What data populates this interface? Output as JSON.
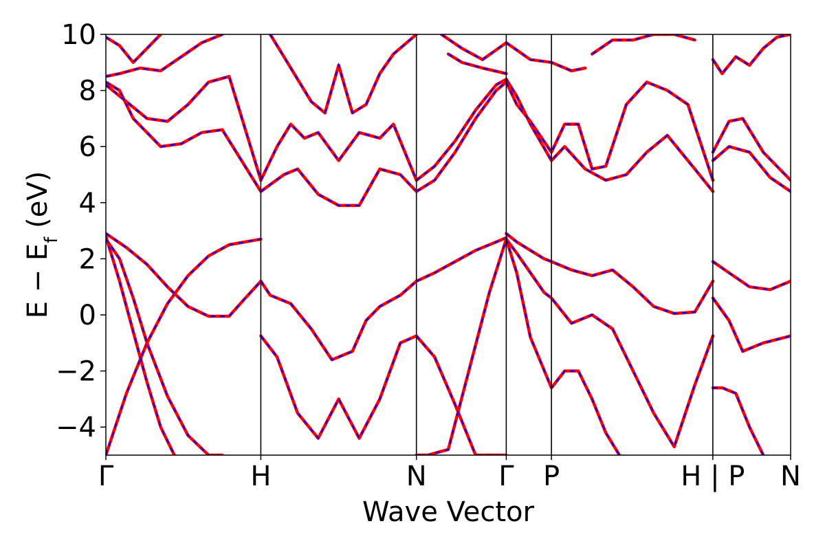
{
  "chart_data": {
    "type": "line",
    "xlabel": "Wave Vector",
    "ylabel": {
      "main": "E − E",
      "sub": "f",
      "unit": " (eV)"
    },
    "ylim": [
      -5,
      10
    ],
    "yticks": [
      {
        "value": -4,
        "label": "−4"
      },
      {
        "value": -2,
        "label": "−2"
      },
      {
        "value": 0,
        "label": "0"
      },
      {
        "value": 2,
        "label": "2"
      },
      {
        "value": 4,
        "label": "4"
      },
      {
        "value": 6,
        "label": "6"
      },
      {
        "value": 8,
        "label": "8"
      },
      {
        "value": 10,
        "label": "10"
      }
    ],
    "xlim": [
      0,
      1
    ],
    "kpoints": [
      {
        "label": "Γ",
        "x": 0.0
      },
      {
        "label": "H",
        "x": 0.2263
      },
      {
        "label": "N",
        "x": 0.4535
      },
      {
        "label": "Γ",
        "x": 0.5847
      },
      {
        "label": "P",
        "x": 0.6507
      },
      {
        "label": "H | P",
        "x": 0.8864
      },
      {
        "label": "N",
        "x": 1.0
      }
    ],
    "series_colors": {
      "solid": "#ff0000",
      "dashed": "#0000ff"
    },
    "series_style": {
      "solid": "red solid",
      "dashed": "blue dashed overlay"
    },
    "bands": [
      {
        "x": [
          0,
          0.03,
          0.06,
          0.09,
          0.12,
          0.15,
          0.18,
          0.2263
        ],
        "y": [
          -5,
          -2.8,
          -1.0,
          0.4,
          1.4,
          2.1,
          2.5,
          2.7
        ]
      },
      {
        "x": [
          0,
          0.02,
          0.04,
          0.06,
          0.08,
          0.1
        ],
        "y": [
          2.8,
          1.2,
          -0.6,
          -2.4,
          -4.0,
          -5
        ]
      },
      {
        "x": [
          0,
          0.02,
          0.04,
          0.06,
          0.09,
          0.12,
          0.15,
          0.17
        ],
        "y": [
          2.7,
          2.0,
          0.6,
          -1.0,
          -2.9,
          -4.3,
          -5,
          -5
        ]
      },
      {
        "x": [
          0,
          0.03,
          0.06,
          0.09,
          0.12,
          0.15,
          0.18,
          0.2,
          0.2263
        ],
        "y": [
          2.9,
          2.4,
          1.8,
          1.0,
          0.3,
          -0.05,
          -0.05,
          0.5,
          1.2
        ]
      },
      {
        "x": [
          0.2263,
          0.24,
          0.27,
          0.3,
          0.33,
          0.36,
          0.38,
          0.4,
          0.43,
          0.4535
        ],
        "y": [
          1.2,
          0.7,
          0.4,
          -0.5,
          -1.6,
          -1.3,
          -0.2,
          0.3,
          0.7,
          1.2
        ]
      },
      {
        "x": [
          0.2263,
          0.25,
          0.28,
          0.31,
          0.34,
          0.37,
          0.4,
          0.43,
          0.4535
        ],
        "y": [
          -0.75,
          -1.5,
          -3.5,
          -4.4,
          -3.0,
          -4.4,
          -3.0,
          -1.0,
          -0.75
        ]
      },
      {
        "x": [
          0.4535,
          0.48,
          0.51,
          0.54,
          0.57,
          0.5847
        ],
        "y": [
          1.2,
          1.5,
          1.9,
          2.3,
          2.6,
          2.75
        ]
      },
      {
        "x": [
          0.4535,
          0.48,
          0.51,
          0.54,
          0.57,
          0.5847
        ],
        "y": [
          -0.75,
          -1.5,
          -3.2,
          -5,
          -5,
          -5
        ]
      },
      {
        "x": [
          0.4535,
          0.47,
          0.5,
          0.53,
          0.56,
          0.5847
        ],
        "y": [
          -5,
          -5,
          -4.8,
          -2.0,
          0.8,
          2.7
        ]
      },
      {
        "x": [
          0.5847,
          0.6,
          0.62,
          0.64,
          0.6507,
          0.68,
          0.71,
          0.74,
          0.77,
          0.8,
          0.83,
          0.86,
          0.8864
        ],
        "y": [
          2.9,
          2.6,
          2.3,
          2.0,
          1.9,
          1.6,
          1.4,
          1.6,
          1.0,
          0.3,
          0.05,
          0.1,
          1.2
        ]
      },
      {
        "x": [
          0.5847,
          0.6,
          0.62,
          0.64,
          0.6507,
          0.68,
          0.71,
          0.74,
          0.77,
          0.8,
          0.83,
          0.86,
          0.8864
        ],
        "y": [
          2.7,
          2.2,
          1.5,
          0.8,
          0.6,
          -0.3,
          0.0,
          -0.5,
          -2.0,
          -3.5,
          -4.7,
          -2.5,
          -0.75
        ]
      },
      {
        "x": [
          0.5847,
          0.6,
          0.62,
          0.6507,
          0.67,
          0.69,
          0.71,
          0.73,
          0.75
        ],
        "y": [
          2.7,
          1.5,
          -0.8,
          -2.6,
          -2.0,
          -2.0,
          -3.0,
          -4.2,
          -5
        ]
      },
      {
        "x": [
          0.8864,
          0.91,
          0.94,
          0.97,
          1.0
        ],
        "y": [
          1.9,
          1.5,
          1.0,
          0.9,
          1.2
        ]
      },
      {
        "x": [
          0.8864,
          0.91,
          0.93,
          0.96,
          1.0
        ],
        "y": [
          0.6,
          -0.2,
          -1.3,
          -1.0,
          -0.75
        ]
      },
      {
        "x": [
          0.8864,
          0.9,
          0.92,
          0.94,
          0.96
        ],
        "y": [
          -2.6,
          -2.6,
          -2.8,
          -4.0,
          -5
        ]
      },
      {
        "x": [
          0,
          0.02,
          0.04,
          0.06,
          0.08,
          0.11,
          0.14,
          0.17,
          0.2263
        ],
        "y": [
          8.3,
          8.0,
          7.0,
          6.5,
          6.0,
          6.1,
          6.5,
          6.6,
          4.4
        ]
      },
      {
        "x": [
          0,
          0.03,
          0.06,
          0.09,
          0.12,
          0.15,
          0.18,
          0.2263
        ],
        "y": [
          8.2,
          7.6,
          7.0,
          6.9,
          7.5,
          8.3,
          8.5,
          4.8
        ]
      },
      {
        "x": [
          0.2263,
          0.26,
          0.28,
          0.31,
          0.34,
          0.37,
          0.4,
          0.43,
          0.4535
        ],
        "y": [
          4.4,
          5.0,
          5.2,
          4.3,
          3.9,
          3.9,
          5.2,
          5.0,
          4.4
        ]
      },
      {
        "x": [
          0.2263,
          0.25,
          0.27,
          0.29,
          0.31,
          0.34,
          0.37,
          0.4,
          0.42,
          0.4535
        ],
        "y": [
          4.8,
          6.0,
          6.8,
          6.3,
          6.5,
          5.5,
          6.5,
          6.3,
          6.8,
          4.8
        ]
      },
      {
        "x": [
          0.4535,
          0.48,
          0.51,
          0.54,
          0.57,
          0.5847
        ],
        "y": [
          4.4,
          4.8,
          5.8,
          7.0,
          8.0,
          8.3
        ]
      },
      {
        "x": [
          0.4535,
          0.48,
          0.51,
          0.54,
          0.57,
          0.5847
        ],
        "y": [
          4.8,
          5.3,
          6.2,
          7.3,
          8.2,
          8.4
        ]
      },
      {
        "x": [
          0.5847,
          0.6,
          0.62,
          0.6507,
          0.67,
          0.7,
          0.73,
          0.76,
          0.79,
          0.82,
          0.86,
          0.8864
        ],
        "y": [
          8.4,
          7.8,
          6.8,
          5.5,
          6.0,
          5.2,
          4.8,
          5.0,
          5.8,
          6.4,
          5.2,
          4.4
        ]
      },
      {
        "x": [
          0.5847,
          0.6,
          0.62,
          0.6507,
          0.67,
          0.69,
          0.71,
          0.73,
          0.76,
          0.79,
          0.82,
          0.85,
          0.8864
        ],
        "y": [
          8.3,
          7.5,
          6.9,
          5.8,
          6.8,
          6.8,
          5.2,
          5.3,
          7.5,
          8.3,
          8.0,
          7.5,
          4.8
        ]
      },
      {
        "x": [
          0.8864,
          0.91,
          0.94,
          0.97,
          1.0
        ],
        "y": [
          5.5,
          6.0,
          5.8,
          4.9,
          4.4
        ]
      },
      {
        "x": [
          0.8864,
          0.91,
          0.93,
          0.96,
          1.0
        ],
        "y": [
          5.8,
          6.9,
          7.0,
          5.8,
          4.8
        ]
      },
      {
        "x": [
          0,
          0.02,
          0.05,
          0.08,
          0.11,
          0.14,
          0.17
        ],
        "y": [
          8.5,
          8.6,
          8.8,
          8.7,
          9.2,
          9.7,
          10
        ]
      },
      {
        "x": [
          0,
          0.02,
          0.04,
          0.06,
          0.08
        ],
        "y": [
          9.9,
          9.6,
          9.0,
          9.5,
          10
        ]
      },
      {
        "x": [
          0.24,
          0.26,
          0.28,
          0.3,
          0.32,
          0.34,
          0.36,
          0.38,
          0.4,
          0.42,
          0.4535
        ],
        "y": [
          10,
          9.2,
          8.4,
          7.6,
          7.2,
          8.9,
          7.2,
          7.5,
          8.6,
          9.3,
          10
        ]
      },
      {
        "x": [
          0.5,
          0.52,
          0.55,
          0.5847
        ],
        "y": [
          9.3,
          9.0,
          8.8,
          8.6
        ]
      },
      {
        "x": [
          0.49,
          0.52,
          0.55,
          0.5847,
          0.62,
          0.6507,
          0.68,
          0.7
        ],
        "y": [
          10,
          9.5,
          9.1,
          9.7,
          9.1,
          9.0,
          8.7,
          8.8
        ]
      },
      {
        "x": [
          0.71,
          0.74,
          0.77,
          0.8,
          0.83,
          0.86
        ],
        "y": [
          9.3,
          9.8,
          9.8,
          10,
          10,
          9.8
        ]
      },
      {
        "x": [
          0.8864,
          0.9,
          0.92,
          0.94,
          0.96,
          0.98,
          1.0
        ],
        "y": [
          9.1,
          8.6,
          9.2,
          8.9,
          9.5,
          9.9,
          10
        ]
      }
    ]
  }
}
